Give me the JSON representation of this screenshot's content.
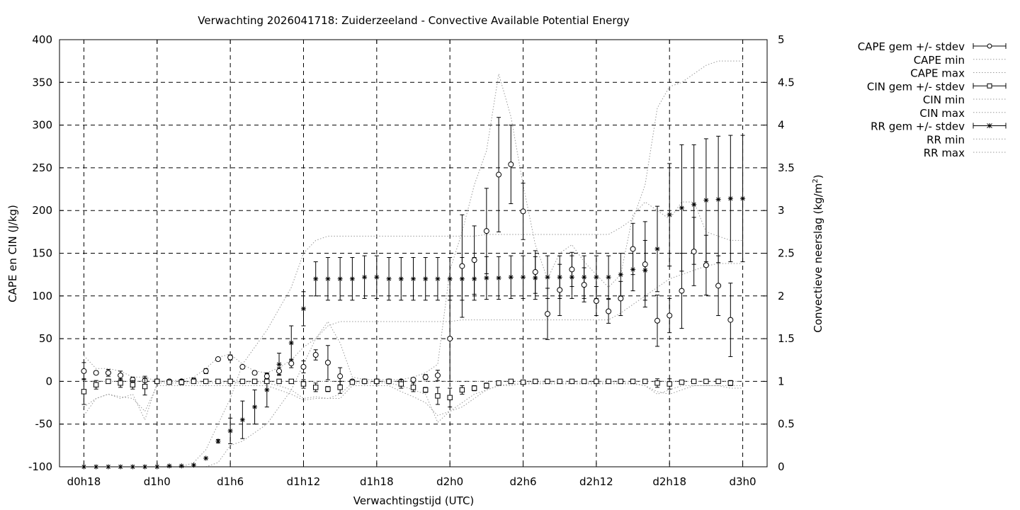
{
  "chart_data": {
    "type": "line",
    "title": "Verwachting 2026041718: Zuiderzeeland - Convective Available Potential Energy",
    "xlabel": "Verwachtingstijd (UTC)",
    "ylabel": "CAPE en CIN (J/kg)",
    "y2label_main": "Convectieve neerslag (kg/m",
    "y2label_sup": "2",
    "y2label_end": ")",
    "x_ticks": [
      "d0h18",
      "d1h0",
      "d1h6",
      "d1h12",
      "d1h18",
      "d2h0",
      "d2h6",
      "d2h12",
      "d2h18",
      "d3h0"
    ],
    "x_tick_hours": [
      18,
      24,
      30,
      36,
      42,
      48,
      54,
      60,
      66,
      72
    ],
    "xlim_hours": [
      16,
      74
    ],
    "ylim": [
      -100,
      400
    ],
    "y_ticks": [
      "-100",
      "-50",
      "0",
      "50",
      "100",
      "150",
      "200",
      "250",
      "300",
      "350",
      "400"
    ],
    "y_tick_values": [
      -100,
      -50,
      0,
      50,
      100,
      150,
      200,
      250,
      300,
      350,
      400
    ],
    "y2lim": [
      0,
      5
    ],
    "y2_ticks": [
      "0",
      "0.5",
      "1",
      "1.5",
      "2",
      "2.5",
      "3",
      "3.5",
      "4",
      "4.5",
      "5"
    ],
    "y2_tick_values": [
      0,
      0.5,
      1,
      1.5,
      2,
      2.5,
      3,
      3.5,
      4,
      4.5,
      5
    ],
    "grid": true,
    "legend_position": "right, outside plot",
    "x_hours": [
      18,
      19,
      20,
      21,
      22,
      23,
      24,
      25,
      26,
      27,
      28,
      29,
      30,
      31,
      32,
      33,
      34,
      35,
      36,
      37,
      38,
      39,
      40,
      41,
      42,
      43,
      44,
      45,
      46,
      47,
      48,
      49,
      50,
      51,
      52,
      53,
      54,
      55,
      56,
      57,
      58,
      59,
      60,
      61,
      62,
      63,
      64,
      65,
      66,
      67,
      68,
      69,
      70,
      71,
      72
    ],
    "series": [
      {
        "name": "CAPE gem +/- stdev",
        "marker": "circle",
        "axis": "left",
        "values": [
          12,
          10,
          10,
          7,
          2,
          1,
          0,
          0,
          0,
          1,
          12,
          26,
          28,
          17,
          10,
          6,
          12,
          21,
          17,
          31,
          22,
          6,
          0,
          0,
          0,
          0,
          0,
          2,
          5,
          7,
          50,
          135,
          142,
          176,
          242,
          254,
          199,
          128,
          79,
          107,
          131,
          113,
          94,
          82,
          97,
          155,
          137,
          71,
          77,
          106,
          152,
          136,
          112,
          72
        ],
        "stdev": [
          10,
          2,
          4,
          5,
          3,
          5,
          0,
          0,
          2,
          3,
          3,
          2,
          3,
          2,
          2,
          3,
          4,
          5,
          7,
          6,
          20,
          10,
          0,
          0,
          0,
          0,
          1,
          2,
          3,
          6,
          50,
          60,
          40,
          50,
          67,
          46,
          33,
          25,
          30,
          30,
          20,
          20,
          17,
          14,
          20,
          30,
          50,
          30,
          20,
          44,
          40,
          35,
          35,
          43
        ],
        "x_index_offset": 0
      },
      {
        "name": "CAPE min",
        "marker": "dotted",
        "axis": "left",
        "values": [
          -30,
          -20,
          -15,
          -20,
          -15,
          -45,
          -2,
          -2,
          -2,
          -2,
          -2,
          -2,
          -2,
          -2,
          -2,
          -2,
          -5,
          -10,
          -20,
          -18,
          -20,
          -15,
          -2,
          -2,
          -2,
          -2,
          -5,
          -10,
          -15,
          -48,
          -35,
          -30,
          -20,
          -10,
          -5,
          -5,
          -2,
          -2,
          -2,
          -2,
          -2,
          -2,
          -2,
          -2,
          -2,
          -2,
          -5,
          -15,
          -10,
          -5,
          -5,
          -5,
          -5,
          -5,
          -5
        ]
      },
      {
        "name": "CAPE max",
        "marker": "dotted",
        "axis": "left",
        "values": [
          30,
          15,
          15,
          12,
          5,
          5,
          0,
          0,
          2,
          5,
          15,
          28,
          32,
          20,
          12,
          10,
          16,
          25,
          40,
          50,
          70,
          45,
          5,
          2,
          2,
          2,
          2,
          5,
          10,
          20,
          130,
          175,
          230,
          270,
          360,
          310,
          230,
          160,
          120,
          150,
          160,
          140,
          125,
          110,
          125,
          195,
          210,
          200,
          190,
          210,
          210,
          175,
          170,
          165,
          165
        ]
      },
      {
        "name": "CIN gem +/- stdev",
        "marker": "square",
        "axis": "left",
        "values": [
          -12,
          -4,
          0,
          -2,
          -4,
          -6,
          0,
          -1,
          -1,
          0,
          0,
          0,
          0,
          0,
          0,
          0,
          0,
          0,
          -3,
          -7,
          -9,
          -7,
          -1,
          0,
          0,
          0,
          -3,
          -7,
          -10,
          -17,
          -19,
          -10,
          -8,
          -5,
          -2,
          0,
          -1,
          0,
          0,
          0,
          0,
          0,
          0,
          0,
          0,
          0,
          0,
          -2,
          -3,
          -1,
          0,
          0,
          0,
          -2
        ],
        "stdev": [
          15,
          5,
          2,
          5,
          5,
          10,
          1,
          2,
          3,
          2,
          2,
          1,
          1,
          2,
          2,
          2,
          2,
          2,
          5,
          5,
          3,
          7,
          2,
          2,
          2,
          2,
          5,
          5,
          3,
          10,
          11,
          5,
          3,
          3,
          2,
          1,
          2,
          1,
          1,
          1,
          1,
          1,
          1,
          1,
          1,
          1,
          1,
          5,
          6,
          2,
          1,
          1,
          1,
          3
        ]
      },
      {
        "name": "CIN min",
        "marker": "dotted",
        "axis": "left",
        "values": [
          -40,
          -20,
          -15,
          -18,
          -20,
          -35,
          -5,
          -5,
          -5,
          -5,
          -5,
          -5,
          -5,
          -5,
          -5,
          -5,
          -10,
          -15,
          -22,
          -20,
          -20,
          -20,
          -5,
          -5,
          -5,
          -5,
          -12,
          -18,
          -25,
          -40,
          -35,
          -25,
          -15,
          -10,
          -5,
          -3,
          -3,
          -3,
          -3,
          -3,
          -3,
          -3,
          -3,
          -3,
          -3,
          -3,
          -5,
          -12,
          -15,
          -10,
          -5,
          -5,
          -5,
          -8,
          -8
        ]
      },
      {
        "name": "CIN max",
        "marker": "dotted",
        "axis": "left",
        "values": [
          0,
          0,
          0,
          0,
          0,
          0,
          0,
          0,
          0,
          0,
          0,
          0,
          0,
          0,
          0,
          0,
          0,
          0,
          0,
          0,
          0,
          0,
          0,
          0,
          0,
          0,
          0,
          0,
          0,
          0,
          0,
          0,
          0,
          0,
          0,
          0,
          0,
          0,
          0,
          0,
          0,
          0,
          0,
          0,
          0,
          0,
          0,
          0,
          0,
          0,
          0,
          0,
          0,
          0,
          0
        ]
      },
      {
        "name": "RR gem +/- stdev",
        "marker": "star",
        "axis": "right",
        "values": [
          0,
          0,
          0,
          0,
          0,
          0,
          0,
          0.01,
          0.01,
          0.02,
          0.1,
          0.3,
          0.42,
          0.55,
          0.7,
          0.9,
          1.2,
          1.45,
          1.85,
          2.2,
          2.2,
          2.2,
          2.2,
          2.22,
          2.22,
          2.2,
          2.2,
          2.2,
          2.2,
          2.2,
          2.2,
          2.2,
          2.2,
          2.21,
          2.21,
          2.22,
          2.22,
          2.21,
          2.22,
          2.22,
          2.22,
          2.22,
          2.22,
          2.22,
          2.25,
          2.31,
          2.3,
          2.55,
          2.95,
          3.03,
          3.07,
          3.12,
          3.13,
          3.14,
          3.14
        ],
        "stdev": [
          0,
          0,
          0,
          0,
          0,
          0,
          0,
          0,
          0,
          0,
          0,
          0.02,
          0.15,
          0.22,
          0.2,
          0.2,
          0.13,
          0.2,
          0.2,
          0.2,
          0.25,
          0.25,
          0.25,
          0.25,
          0.25,
          0.25,
          0.25,
          0.25,
          0.25,
          0.25,
          0.25,
          0.25,
          0.25,
          0.25,
          0.25,
          0.25,
          0.25,
          0.25,
          0.25,
          0.25,
          0.25,
          0.25,
          0.25,
          0.25,
          0.25,
          0.25,
          0.35,
          0.5,
          0.6,
          0.74,
          0.7,
          0.72,
          0.74,
          0.74,
          0.74
        ]
      },
      {
        "name": "RR min",
        "marker": "dotted",
        "axis": "right",
        "values": [
          0,
          0,
          0,
          0,
          0,
          0,
          0,
          0,
          0,
          0,
          0,
          0.05,
          0.25,
          0.3,
          0.4,
          0.5,
          0.7,
          0.9,
          1.2,
          1.5,
          1.65,
          1.7,
          1.7,
          1.7,
          1.7,
          1.7,
          1.7,
          1.7,
          1.7,
          1.7,
          1.7,
          1.72,
          1.72,
          1.72,
          1.72,
          1.72,
          1.72,
          1.72,
          1.72,
          1.72,
          1.72,
          1.72,
          1.72,
          1.72,
          1.8,
          1.9,
          2.0,
          2.1,
          2.2,
          2.25,
          2.3,
          2.35,
          2.38,
          2.38,
          2.38
        ]
      },
      {
        "name": "RR max",
        "marker": "dotted",
        "axis": "right",
        "values": [
          0,
          0,
          0,
          0,
          0,
          0,
          0,
          0,
          0,
          0.05,
          0.2,
          0.5,
          0.8,
          1.2,
          1.4,
          1.6,
          1.85,
          2.1,
          2.5,
          2.65,
          2.7,
          2.7,
          2.7,
          2.7,
          2.7,
          2.7,
          2.7,
          2.7,
          2.7,
          2.7,
          2.7,
          2.7,
          2.7,
          2.72,
          2.72,
          2.72,
          2.72,
          2.72,
          2.72,
          2.72,
          2.72,
          2.72,
          2.72,
          2.72,
          2.8,
          2.9,
          3.3,
          4.2,
          4.45,
          4.5,
          4.6,
          4.7,
          4.75,
          4.75,
          4.75
        ]
      }
    ]
  }
}
